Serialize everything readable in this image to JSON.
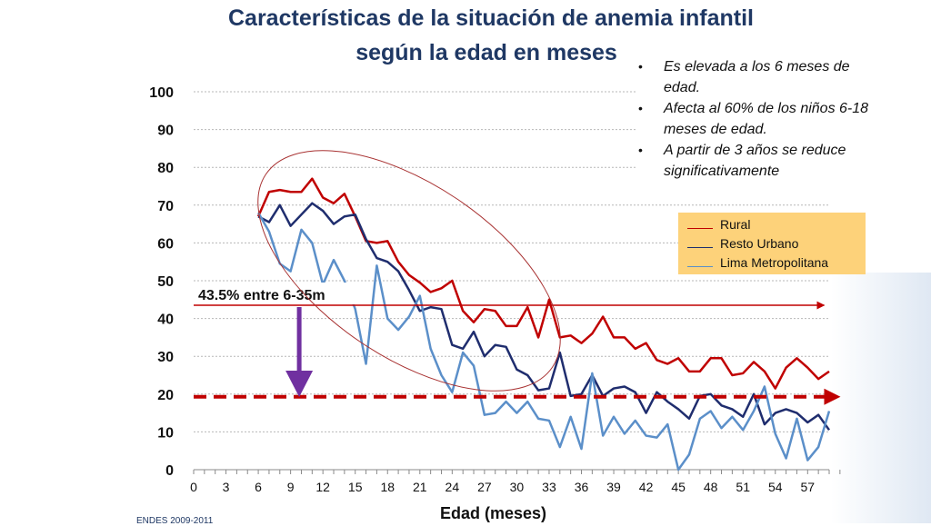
{
  "title_line1": "Características de la situación de anemia infantil",
  "title_line2": "según la edad en meses",
  "source": "ENDES 2009-2011",
  "notes": [
    "Es elevada a los 6 meses de edad.",
    "Afecta al 60% de los niños 6-18 meses de edad.",
    "A partir de 3 años se reduce significativamente"
  ],
  "annotation": "43.5% entre 6-35m",
  "colors": {
    "rural": "#c00000",
    "resto": "#1f2d6e",
    "lima": "#5b8fc9",
    "reference": "#c00000",
    "arrow": "#7030a0",
    "title": "#1f3864",
    "legend_bg": "#fdd27a"
  },
  "chart_data": {
    "type": "line",
    "xlabel": "Edad (meses)",
    "ylabel": "",
    "xlim": [
      0,
      59
    ],
    "ylim": [
      0,
      100
    ],
    "x_ticks": [
      0,
      3,
      6,
      9,
      12,
      15,
      18,
      21,
      24,
      27,
      30,
      33,
      36,
      39,
      42,
      45,
      48,
      51,
      54,
      57
    ],
    "y_ticks": [
      0,
      10,
      20,
      30,
      40,
      50,
      60,
      70,
      80,
      90,
      100
    ],
    "grid": true,
    "legend_position": "right",
    "x": [
      6,
      7,
      8,
      9,
      10,
      11,
      12,
      13,
      14,
      15,
      16,
      17,
      18,
      19,
      20,
      21,
      22,
      23,
      24,
      25,
      26,
      27,
      28,
      29,
      30,
      31,
      32,
      33,
      34,
      35,
      36,
      37,
      38,
      39,
      40,
      41,
      42,
      43,
      44,
      45,
      46,
      47,
      48,
      49,
      50,
      51,
      52,
      53,
      54,
      55,
      56,
      57,
      58,
      59
    ],
    "series": [
      {
        "name": "Rural",
        "color": "#c00000",
        "values": [
          67,
          73.5,
          74,
          73.5,
          73.5,
          77,
          72,
          70.5,
          73,
          67,
          60.5,
          60,
          60.5,
          55,
          51.5,
          49.5,
          47,
          48,
          50,
          42,
          39,
          42.5,
          42,
          38,
          38,
          43,
          35,
          45,
          35,
          35.5,
          33.5,
          36,
          40.5,
          35,
          35,
          32,
          33.5,
          29,
          28,
          29.5,
          26,
          26,
          29.5,
          29.5,
          25,
          25.5,
          28.5,
          26,
          21.5,
          27,
          29.5,
          27,
          24,
          26
        ]
      },
      {
        "name": "Resto Urbano",
        "color": "#1f2d6e",
        "values": [
          67,
          65.5,
          70,
          64.5,
          67.5,
          70.5,
          68.5,
          65,
          67,
          67.5,
          61,
          56,
          55,
          52.5,
          47.5,
          42,
          43,
          42.5,
          33,
          32,
          36.5,
          30,
          33,
          32.5,
          26.5,
          25,
          21,
          21.5,
          31,
          19.5,
          20,
          25,
          19.5,
          21.5,
          22,
          20.5,
          15,
          20.5,
          18,
          16,
          13.5,
          19.5,
          20,
          17,
          16,
          14,
          20,
          12,
          15,
          16,
          15,
          12.5,
          14.5,
          10.5
        ]
      },
      {
        "name": "Lima Metropolitana",
        "color": "#5b8fc9",
        "values": [
          68,
          63,
          54.5,
          52.5,
          63.5,
          60,
          49,
          55.5,
          50,
          42.5,
          28,
          54,
          40,
          37,
          40.5,
          46,
          32,
          25,
          20.5,
          31,
          27.5,
          14.5,
          15,
          18,
          15,
          18,
          13.5,
          13,
          6,
          14,
          5.5,
          25.5,
          9,
          14,
          9.5,
          13,
          9,
          8.5,
          12,
          0,
          4,
          13.5,
          15.5,
          11,
          14,
          10.5,
          15.5,
          22,
          9.5,
          3,
          13.5,
          2.5,
          6,
          15.5
        ]
      }
    ],
    "reference_lines": [
      {
        "y": 43.5,
        "style": "solid",
        "x_end": 56
      },
      {
        "y": 19.3,
        "style": "dashed",
        "x_end": 56
      }
    ]
  }
}
